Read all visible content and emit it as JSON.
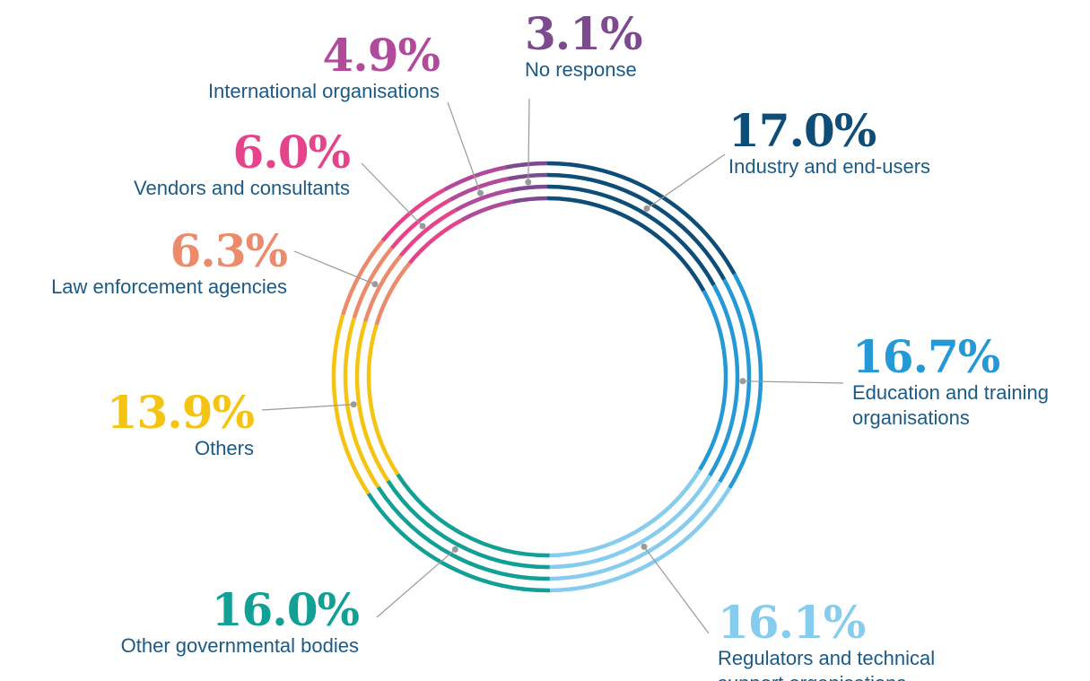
{
  "chart_data": {
    "type": "donut",
    "categories": [
      "Industry and end-users",
      "Education and training organisations",
      "Regulators and technical support organisations",
      "Other governmental bodies",
      "Others",
      "Law enforcement agencies",
      "Vendors and consultants",
      "International organisations",
      "No response"
    ],
    "values": [
      17.0,
      16.7,
      16.1,
      16.0,
      13.9,
      6.3,
      6.0,
      4.9,
      3.1
    ],
    "value_labels": [
      "17.0%",
      "16.7%",
      "16.1%",
      "16.0%",
      "13.9%",
      "6.3%",
      "6.0%",
      "4.9%",
      "3.1%"
    ],
    "colors": [
      "#0e4d78",
      "#2499d6",
      "#86ccef",
      "#12a096",
      "#f5c312",
      "#ec8a6c",
      "#e6448a",
      "#b24a9c",
      "#7d4a8f"
    ]
  }
}
